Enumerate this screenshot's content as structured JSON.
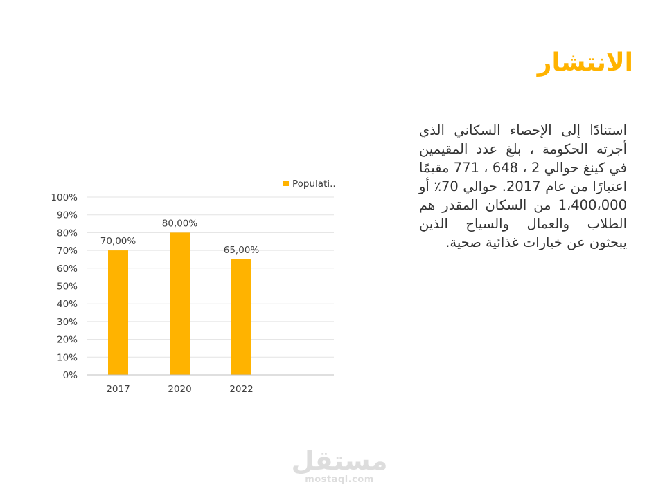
{
  "slide": {
    "title": "الانتشار",
    "body": "استنادًا إلى الإحصاء السكاني الذي أجرته الحكومة ، بلغ عدد المقيمين في كينغ حوالي 2 ، 648 ، 771 مقيمًا اعتبارًا من عام 2017. حوالي 70٪ أو 1،400،000 من السكان المقدر هم الطلاب والعمال والسياح الذين يبحثون عن خيارات غذائية صحية."
  },
  "chart_data": {
    "type": "bar",
    "categories": [
      "2017",
      "2020",
      "2022"
    ],
    "series": [
      {
        "name": "Populati..",
        "values": [
          70,
          80,
          65
        ],
        "labels": [
          "70,00%",
          "80,00%",
          "65,00%"
        ],
        "color": "#FFB300"
      }
    ],
    "y_ticks": [
      "0%",
      "10%",
      "20%",
      "30%",
      "40%",
      "50%",
      "60%",
      "70%",
      "80%",
      "90%",
      "100%"
    ],
    "ylim": [
      0,
      100
    ],
    "grid": true,
    "legend": "top-right"
  },
  "watermark": {
    "arabic": "مستقل",
    "latin": "mostaql.com"
  }
}
